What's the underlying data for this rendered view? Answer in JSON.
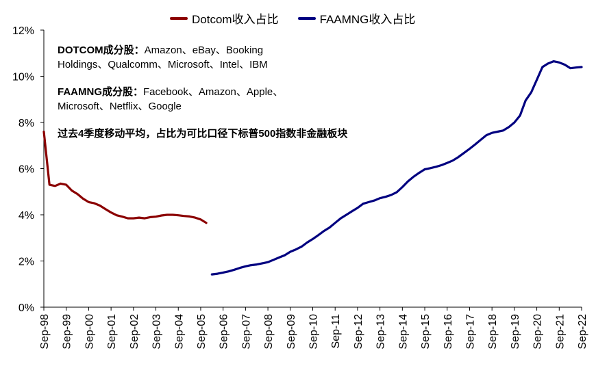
{
  "legend": [
    {
      "label": "Dotcom收入占比",
      "color": "#8B0000"
    },
    {
      "label": "FAAMNG收入占比",
      "color": "#000080"
    }
  ],
  "notes": {
    "dotcom_head": "DOTCOM成分股：",
    "dotcom_body_1": "Amazon、eBay、Booking",
    "dotcom_body_2": "Holdings、Qualcomm、Microsoft、Intel、IBM",
    "faamng_head": "FAAMNG成分股：",
    "faamng_body_1": "Facebook、Amazon、Apple、",
    "faamng_body_2": "Microsoft、Netflix、Google",
    "method": "过去4季度移动平均，占比为可比口径下标普500指数非金融板块"
  },
  "chart_data": {
    "type": "line",
    "title": "",
    "xlabel": "",
    "ylabel": "",
    "ylim": [
      0,
      12
    ],
    "y_ticks": [
      0,
      2,
      4,
      6,
      8,
      10,
      12
    ],
    "y_tick_labels": [
      "0%",
      "2%",
      "4%",
      "6%",
      "8%",
      "10%",
      "12%"
    ],
    "xlim": [
      0,
      96
    ],
    "x_ticks": [
      0,
      4,
      8,
      12,
      16,
      20,
      24,
      28,
      32,
      36,
      40,
      44,
      48,
      52,
      56,
      60,
      64,
      68,
      72,
      76,
      80,
      84,
      88,
      92,
      96
    ],
    "x_tick_labels": [
      "Sep-98",
      "Sep-99",
      "Sep-00",
      "Sep-01",
      "Sep-02",
      "Sep-03",
      "Sep-04",
      "Sep-05",
      "Sep-06",
      "Sep-07",
      "Sep-08",
      "Sep-09",
      "Sep-10",
      "Sep-11",
      "Sep-12",
      "Sep-13",
      "Sep-14",
      "Sep-15",
      "Sep-16",
      "Sep-17",
      "Sep-18",
      "Sep-19",
      "Sep-20",
      "Sep-21",
      "Sep-22"
    ],
    "series": [
      {
        "name": "Dotcom收入占比",
        "color": "#8B0000",
        "x": [
          0,
          1,
          2,
          3,
          4,
          5,
          6,
          7,
          8,
          9,
          10,
          11,
          12,
          13,
          14,
          15,
          16,
          17,
          18,
          19,
          20,
          21,
          22,
          23,
          24,
          25,
          26,
          27,
          28,
          29
        ],
        "y": [
          7.6,
          5.3,
          5.25,
          5.35,
          5.3,
          5.05,
          4.9,
          4.7,
          4.55,
          4.5,
          4.4,
          4.25,
          4.1,
          3.98,
          3.92,
          3.85,
          3.85,
          3.88,
          3.85,
          3.9,
          3.92,
          3.97,
          4.0,
          4.0,
          3.98,
          3.95,
          3.93,
          3.88,
          3.8,
          3.65
        ]
      },
      {
        "name": "FAAMNG收入占比",
        "color": "#000080",
        "x": [
          30,
          31,
          32,
          33,
          34,
          35,
          36,
          37,
          38,
          39,
          40,
          41,
          42,
          43,
          44,
          45,
          46,
          47,
          48,
          49,
          50,
          51,
          52,
          53,
          54,
          55,
          56,
          57,
          58,
          59,
          60,
          61,
          62,
          63,
          64,
          65,
          66,
          67,
          68,
          69,
          70,
          71,
          72,
          73,
          74,
          75,
          76,
          77,
          78,
          79,
          80,
          81,
          82,
          83,
          84,
          85,
          86,
          87,
          88,
          89,
          90,
          91,
          92,
          93,
          94,
          95,
          96
        ],
        "y": [
          1.42,
          1.45,
          1.5,
          1.55,
          1.62,
          1.7,
          1.77,
          1.82,
          1.85,
          1.9,
          1.95,
          2.05,
          2.15,
          2.25,
          2.4,
          2.5,
          2.62,
          2.8,
          2.95,
          3.12,
          3.3,
          3.45,
          3.65,
          3.85,
          4.0,
          4.15,
          4.3,
          4.48,
          4.55,
          4.62,
          4.72,
          4.78,
          4.86,
          4.98,
          5.2,
          5.45,
          5.65,
          5.82,
          5.97,
          6.02,
          6.08,
          6.15,
          6.25,
          6.35,
          6.5,
          6.68,
          6.86,
          7.05,
          7.25,
          7.45,
          7.55,
          7.6,
          7.65,
          7.8,
          8.0,
          8.3,
          8.95,
          9.3,
          9.85,
          10.4,
          10.55,
          10.65,
          10.6,
          10.5,
          10.35,
          10.38,
          10.4
        ]
      }
    ]
  }
}
